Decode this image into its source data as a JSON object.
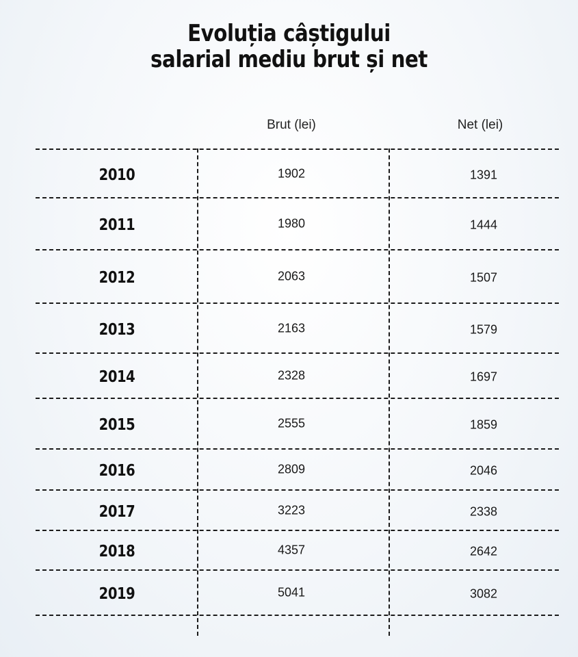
{
  "chart_data": {
    "type": "table",
    "title_lines": [
      "Evoluția câștigului",
      "salarial mediu brut și net"
    ],
    "columns": [
      "",
      "Brut (lei)",
      "Net (lei)"
    ],
    "rows": [
      {
        "year": "2010",
        "brut": 1902,
        "net": 1391
      },
      {
        "year": "2011",
        "brut": 1980,
        "net": 1444
      },
      {
        "year": "2012",
        "brut": 2063,
        "net": 1507
      },
      {
        "year": "2013",
        "brut": 2163,
        "net": 1579
      },
      {
        "year": "2014",
        "brut": 2328,
        "net": 1697
      },
      {
        "year": "2015",
        "brut": 2555,
        "net": 1859
      },
      {
        "year": "2016",
        "brut": 2809,
        "net": 2046
      },
      {
        "year": "2017",
        "brut": 3223,
        "net": 2338
      },
      {
        "year": "2018",
        "brut": 4357,
        "net": 2642
      },
      {
        "year": "2019",
        "brut": 5041,
        "net": 3082
      }
    ]
  }
}
